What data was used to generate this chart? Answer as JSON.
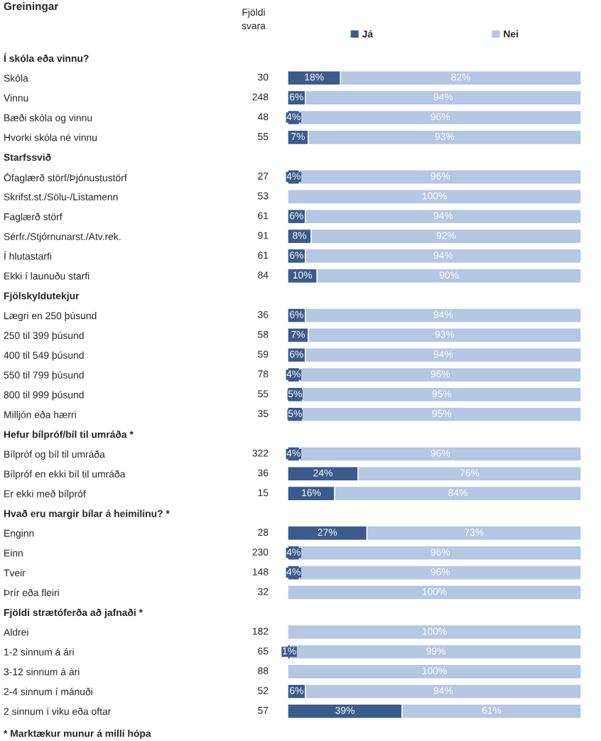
{
  "chart_data": {
    "type": "bar",
    "orientation": "horizontal",
    "stacked": true,
    "title": "Greiningar",
    "categories": [
      "Í skóla eða vinnu?",
      "Skóla",
      "Vinnu",
      "Bæði skóla og vinnu",
      "Hvorki skóla né vinnu",
      "Starfssvið",
      "Ófaglærð störf/Þjónustustörf",
      "Skrifst.st./Sölu-/Listamenn",
      "Faglærð störf",
      "Sérfr./Stjórnunarst./Atv.rek.",
      "Í hlutastarfi",
      "Ekki í launuðu starfi",
      "Fjölskyldutekjur",
      "Lægri en 250 þúsund",
      "250 til 399 þúsund",
      "400 til 549 þúsund",
      "550 til 799 þúsund",
      "800 til 999 þúsund",
      "Milljón eða hærri",
      "Hefur bílpróf/bíl til umráða *",
      "Bílpróf og bíl til umráða",
      "Bílpróf en ekki bíl til umráða",
      "Er ekki með bílpróf",
      "Hvað eru margir bílar á heimilinu? *",
      "Enginn",
      "Einn",
      "Tveir",
      "Þrír eða fleiri",
      "Fjöldi strætóferða að jafnaði *",
      "Aldrei",
      "1-2 sinnum á ári",
      "3-12 sinnum á ári",
      "2-4 sinnum í mánuði",
      "2 sinnum í viku eða oftar"
    ],
    "series": [
      {
        "name": "Já",
        "color": "#3b5b8c",
        "values": [
          null,
          18,
          6,
          4,
          7,
          null,
          4,
          0,
          6,
          8,
          6,
          10,
          null,
          6,
          7,
          6,
          4,
          5,
          5,
          null,
          4,
          24,
          16,
          null,
          27,
          4,
          4,
          0,
          null,
          0,
          1,
          0,
          6,
          39
        ],
        "value_labels": [
          null,
          "18%",
          "6%",
          "4%",
          "7%",
          null,
          "4%",
          null,
          "6%",
          "8%",
          "6%",
          "10%",
          null,
          "6%",
          "7%",
          "6%",
          "4%",
          "5%",
          "5%",
          null,
          "4%",
          "24%",
          "16%",
          null,
          "27%",
          "4%",
          "4%",
          null,
          null,
          null,
          "1%",
          null,
          "6%",
          "39%"
        ]
      },
      {
        "name": "Nei",
        "color": "#b4c7e3",
        "values": [
          null,
          82,
          94,
          96,
          93,
          null,
          96,
          100,
          94,
          92,
          94,
          90,
          null,
          94,
          93,
          94,
          96,
          95,
          95,
          null,
          96,
          76,
          84,
          null,
          73,
          96,
          96,
          100,
          null,
          100,
          99,
          100,
          94,
          61
        ],
        "value_labels": [
          null,
          "82%",
          "94%",
          "96%",
          "93%",
          null,
          "96%",
          "100%",
          "94%",
          "92%",
          "94%",
          "90%",
          null,
          "94%",
          "93%",
          "94%",
          "96%",
          "95%",
          "95%",
          null,
          "96%",
          "76%",
          "84%",
          null,
          "73%",
          "96%",
          "96%",
          "100%",
          null,
          "100%",
          "99%",
          "100%",
          "94%",
          "61%"
        ]
      }
    ],
    "xlim": [
      0,
      100
    ],
    "tick_labels": "y",
    "legend": "top",
    "grid": false,
    "annotations": [
      "Fjöldi\nsvara",
      "* Marktækur munur á milli hópa",
      "30",
      "248",
      "48",
      "55",
      "27",
      "53",
      "61",
      "91",
      "61",
      "84",
      "36",
      "58",
      "59",
      "78",
      "55",
      "35",
      "322",
      "36",
      "15",
      "28",
      "230",
      "148",
      "32",
      "182",
      "65",
      "88",
      "52",
      "57"
    ]
  }
}
